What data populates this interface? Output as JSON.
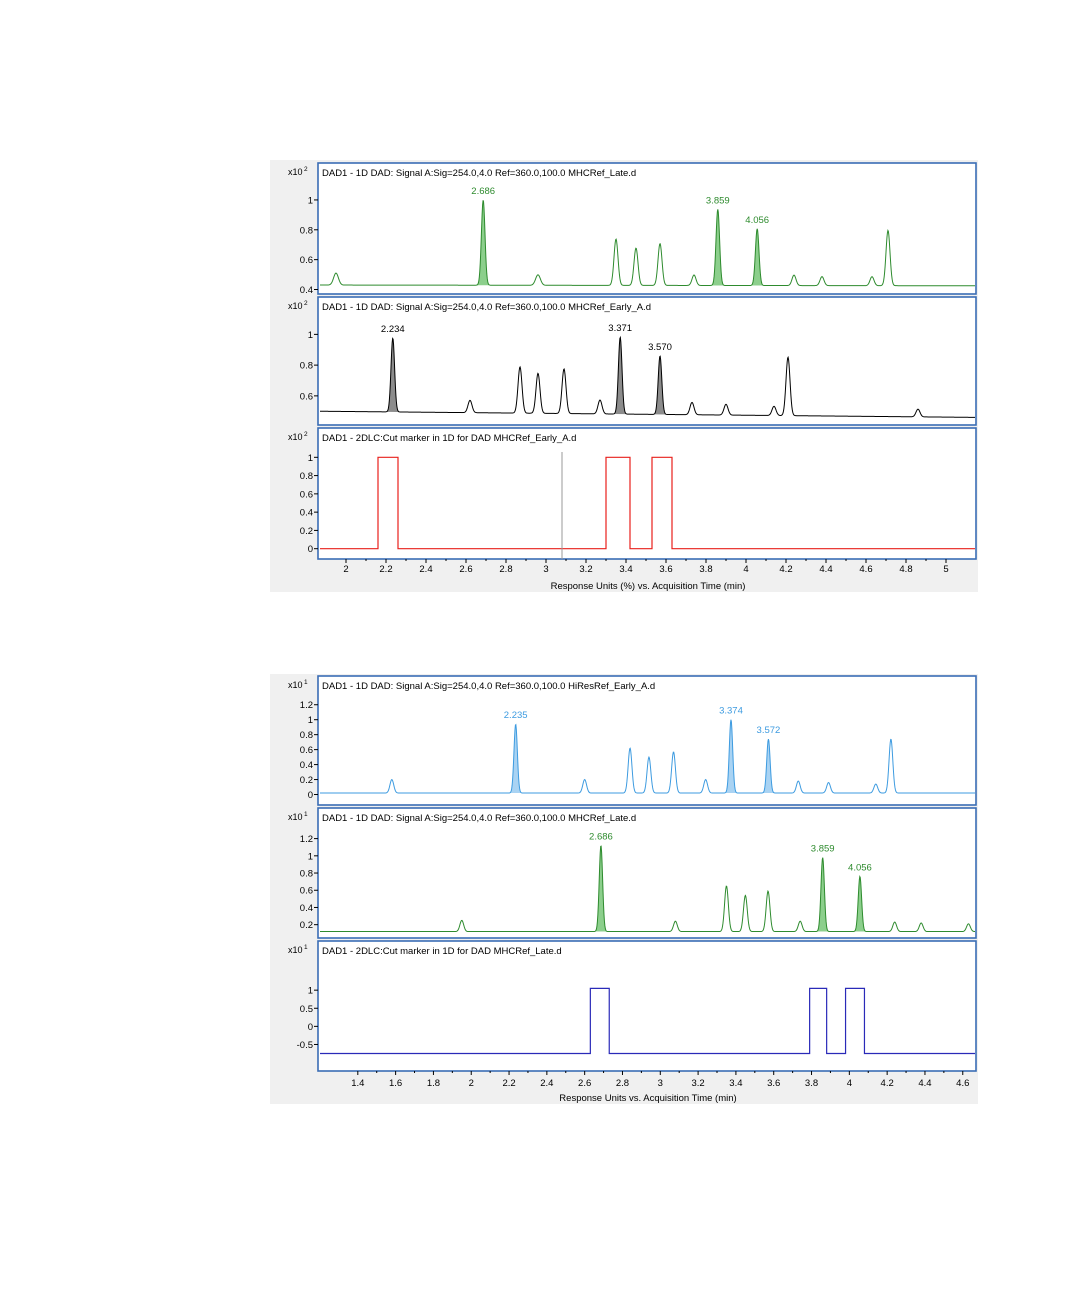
{
  "chart_data": [
    {
      "type": "line",
      "x_axis": {
        "min": 1.87,
        "max": 5.15,
        "ticks": [
          2,
          2.2,
          2.4,
          2.6,
          2.8,
          3,
          3.2,
          3.4,
          3.6,
          3.8,
          4,
          4.2,
          4.4,
          4.6,
          4.8,
          5
        ],
        "tick_labels": [
          "2",
          "2.2",
          "2.4",
          "2.6",
          "2.8",
          "3",
          "3.2",
          "3.4",
          "3.6",
          "3.8",
          "4",
          "4.2",
          "4.4",
          "4.6",
          "4.8",
          "5"
        ],
        "label": "Response Units (%) vs. Acquisition Time (min)"
      },
      "panels": [
        {
          "title": "DAD1 - 1D DAD: Signal A:Sig=254.0,4.0  Ref=360.0,100.0 MHCRef_Late.d",
          "scale_base": "x10",
          "scale_exp": "2",
          "color": "#2e8b2e",
          "fill": "#8ccf8c",
          "ylim": [
            0.39,
            1.1
          ],
          "yticks": [
            0.4,
            0.6,
            0.8,
            1
          ],
          "ytick_labels": [
            "0.4",
            "0.6",
            "0.8",
            "1"
          ],
          "baseline": [
            [
              1.87,
              0.43
            ],
            [
              5.15,
              0.425
            ]
          ],
          "peaks": [
            {
              "x": 1.95,
              "h": 0.08,
              "w": 0.012
            },
            {
              "x": 2.686,
              "h": 0.57,
              "w": 0.009,
              "label": "2.686",
              "fill": true
            },
            {
              "x": 2.96,
              "h": 0.07,
              "w": 0.012
            },
            {
              "x": 3.35,
              "h": 0.31,
              "w": 0.01
            },
            {
              "x": 3.45,
              "h": 0.25,
              "w": 0.01
            },
            {
              "x": 3.57,
              "h": 0.28,
              "w": 0.01
            },
            {
              "x": 3.74,
              "h": 0.07,
              "w": 0.01
            },
            {
              "x": 3.859,
              "h": 0.51,
              "w": 0.009,
              "label": "3.859",
              "fill": true
            },
            {
              "x": 4.056,
              "h": 0.38,
              "w": 0.009,
              "label": "4.056",
              "fill": true
            },
            {
              "x": 4.24,
              "h": 0.07,
              "w": 0.01
            },
            {
              "x": 4.38,
              "h": 0.06,
              "w": 0.01
            },
            {
              "x": 4.63,
              "h": 0.06,
              "w": 0.01
            },
            {
              "x": 4.71,
              "h": 0.37,
              "w": 0.01
            }
          ]
        },
        {
          "title": "DAD1 - 1D DAD: Signal A:Sig=254.0,4.0  Ref=360.0,100.0 MHCRef_Early_A.d",
          "scale_base": "x10",
          "scale_exp": "2",
          "color": "#000000",
          "fill": "#8c8c8c",
          "ylim": [
            0.43,
            1.1
          ],
          "yticks": [
            0.6,
            0.8,
            1
          ],
          "ytick_labels": [
            "0.6",
            "0.8",
            "1"
          ],
          "baseline": [
            [
              1.87,
              0.5
            ],
            [
              5.15,
              0.46
            ]
          ],
          "peaks": [
            {
              "x": 2.234,
              "h": 0.48,
              "w": 0.009,
              "label": "2.234",
              "fill": true
            },
            {
              "x": 2.62,
              "h": 0.08,
              "w": 0.01
            },
            {
              "x": 2.87,
              "h": 0.3,
              "w": 0.01
            },
            {
              "x": 2.96,
              "h": 0.26,
              "w": 0.01
            },
            {
              "x": 3.09,
              "h": 0.29,
              "w": 0.01
            },
            {
              "x": 3.27,
              "h": 0.09,
              "w": 0.01
            },
            {
              "x": 3.371,
              "h": 0.5,
              "w": 0.009,
              "label": "3.371",
              "fill": true
            },
            {
              "x": 3.57,
              "h": 0.38,
              "w": 0.009,
              "label": "3.570",
              "fill": true
            },
            {
              "x": 3.73,
              "h": 0.08,
              "w": 0.01
            },
            {
              "x": 3.9,
              "h": 0.07,
              "w": 0.01
            },
            {
              "x": 4.14,
              "h": 0.06,
              "w": 0.01
            },
            {
              "x": 4.21,
              "h": 0.38,
              "w": 0.01
            },
            {
              "x": 4.86,
              "h": 0.05,
              "w": 0.01
            }
          ]
        },
        {
          "title": "DAD1 - 2DLC:Cut marker in 1D for DAD MHCRef_Early_A.d",
          "scale_base": "x10",
          "scale_exp": "2",
          "color": "#e8201c",
          "ylim": [
            -0.08,
            1.08
          ],
          "yticks": [
            0,
            0.2,
            0.4,
            0.6,
            0.8,
            1
          ],
          "ytick_labels": [
            "0",
            "0.2",
            "0.4",
            "0.6",
            "0.8",
            "1"
          ],
          "step_low": 0,
          "step_high": 1,
          "cuts": [
            [
              2.16,
              2.26
            ],
            [
              3.3,
              3.42
            ],
            [
              3.53,
              3.63
            ]
          ],
          "cursor_x": 3.08
        }
      ]
    },
    {
      "type": "line",
      "x_axis": {
        "min": 1.2,
        "max": 4.67,
        "ticks": [
          1.4,
          1.6,
          1.8,
          2,
          2.2,
          2.4,
          2.6,
          2.8,
          3,
          3.2,
          3.4,
          3.6,
          3.8,
          4,
          4.2,
          4.4,
          4.6
        ],
        "tick_labels": [
          "1.4",
          "1.6",
          "1.8",
          "2",
          "2.2",
          "2.4",
          "2.6",
          "2.8",
          "3",
          "3.2",
          "3.4",
          "3.6",
          "3.8",
          "4",
          "4.2",
          "4.4",
          "4.6"
        ],
        "label": "Response Units vs. Acquisition Time (min)"
      },
      "panels": [
        {
          "title": "DAD1 - 1D DAD: Signal A:Sig=254.0,4.0  Ref=360.0,100.0 HiResRef_Early_A.d",
          "scale_base": "x10",
          "scale_exp": "1",
          "color": "#3d9be0",
          "fill": "#a9d3f3",
          "ylim": [
            -0.1,
            1.29
          ],
          "yticks": [
            0,
            0.2,
            0.4,
            0.6,
            0.8,
            1,
            1.2
          ],
          "ytick_labels": [
            "0",
            "0.2",
            "0.4",
            "0.6",
            "0.8",
            "1",
            "1.2"
          ],
          "baseline": [
            [
              1.2,
              0.02
            ],
            [
              4.67,
              0.02
            ]
          ],
          "peaks": [
            {
              "x": 1.58,
              "h": 0.18,
              "w": 0.01
            },
            {
              "x": 2.235,
              "h": 0.92,
              "w": 0.009,
              "label": "2.235",
              "fill": true
            },
            {
              "x": 2.6,
              "h": 0.18,
              "w": 0.01
            },
            {
              "x": 2.84,
              "h": 0.6,
              "w": 0.01
            },
            {
              "x": 2.94,
              "h": 0.48,
              "w": 0.01
            },
            {
              "x": 3.07,
              "h": 0.55,
              "w": 0.01
            },
            {
              "x": 3.24,
              "h": 0.18,
              "w": 0.01
            },
            {
              "x": 3.374,
              "h": 0.98,
              "w": 0.009,
              "label": "3.374",
              "fill": true
            },
            {
              "x": 3.572,
              "h": 0.72,
              "w": 0.009,
              "label": "3.572",
              "fill": true
            },
            {
              "x": 3.73,
              "h": 0.16,
              "w": 0.01
            },
            {
              "x": 3.89,
              "h": 0.14,
              "w": 0.01
            },
            {
              "x": 4.14,
              "h": 0.12,
              "w": 0.01
            },
            {
              "x": 4.22,
              "h": 0.72,
              "w": 0.01
            }
          ]
        },
        {
          "title": "DAD1 - 1D DAD: Signal A:Sig=254.0,4.0  Ref=360.0,100.0 MHCRef_Late.d",
          "scale_base": "x10",
          "scale_exp": "1",
          "color": "#2e8b2e",
          "fill": "#8ccf8c",
          "ylim": [
            0.08,
            1.3
          ],
          "yticks": [
            0.2,
            0.4,
            0.6,
            0.8,
            1,
            1.2
          ],
          "ytick_labels": [
            "0.2",
            "0.4",
            "0.6",
            "0.8",
            "1",
            "1.2"
          ],
          "baseline": [
            [
              1.2,
              0.12
            ],
            [
              4.67,
              0.12
            ]
          ],
          "peaks": [
            {
              "x": 1.95,
              "h": 0.13,
              "w": 0.01
            },
            {
              "x": 2.686,
              "h": 1.0,
              "w": 0.009,
              "label": "2.686",
              "fill": true
            },
            {
              "x": 3.08,
              "h": 0.12,
              "w": 0.01
            },
            {
              "x": 3.35,
              "h": 0.53,
              "w": 0.01
            },
            {
              "x": 3.45,
              "h": 0.42,
              "w": 0.01
            },
            {
              "x": 3.57,
              "h": 0.47,
              "w": 0.01
            },
            {
              "x": 3.74,
              "h": 0.12,
              "w": 0.01
            },
            {
              "x": 3.859,
              "h": 0.86,
              "w": 0.009,
              "label": "3.859",
              "fill": true
            },
            {
              "x": 4.056,
              "h": 0.64,
              "w": 0.009,
              "label": "4.056",
              "fill": true
            },
            {
              "x": 4.24,
              "h": 0.11,
              "w": 0.01
            },
            {
              "x": 4.38,
              "h": 0.1,
              "w": 0.01
            },
            {
              "x": 4.63,
              "h": 0.09,
              "w": 0.01
            }
          ]
        },
        {
          "title": "DAD1 - 2DLC:Cut marker in 1D for DAD MHCRef_Late.d",
          "scale_base": "x10",
          "scale_exp": "1",
          "color": "#2a2ab8",
          "ylim": [
            -1.15,
            1.75
          ],
          "yticks": [
            -0.5,
            0,
            0.5,
            1
          ],
          "ytick_labels": [
            "-0.5",
            "0",
            "0.5",
            "1"
          ],
          "step_low": -0.75,
          "step_high": 1.05,
          "cuts": [
            [
              2.63,
              2.73
            ],
            [
              3.79,
              3.88
            ],
            [
              3.98,
              4.08
            ]
          ]
        }
      ]
    }
  ]
}
